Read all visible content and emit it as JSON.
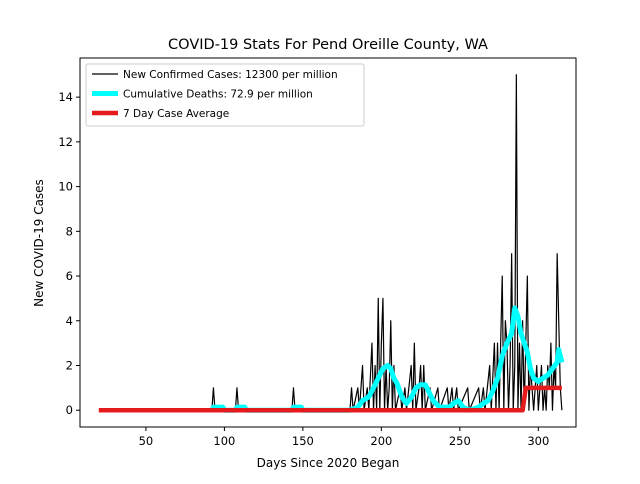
{
  "chart_data": {
    "type": "line",
    "title": "COVID-19 Stats For Pend Oreille County, WA",
    "xlabel": "Days Since 2020 Began",
    "ylabel": "New COVID-19 Cases",
    "xlim": [
      8,
      324
    ],
    "ylim": [
      -0.75,
      15.75
    ],
    "xticks": [
      50,
      100,
      150,
      200,
      250,
      300
    ],
    "yticks": [
      0,
      2,
      4,
      6,
      8,
      10,
      12,
      14
    ],
    "grid": false,
    "legend_position": "top-left",
    "series": [
      {
        "name": "New Confirmed Cases: 12300 per million",
        "color": "#000000",
        "points": [
          [
            20,
            0
          ],
          [
            92,
            0
          ],
          [
            93,
            1
          ],
          [
            94,
            0
          ],
          [
            107,
            0
          ],
          [
            108,
            1
          ],
          [
            109,
            0
          ],
          [
            143,
            0
          ],
          [
            144,
            1
          ],
          [
            145,
            0
          ],
          [
            180,
            0
          ],
          [
            181,
            1
          ],
          [
            182,
            0
          ],
          [
            185,
            1
          ],
          [
            186,
            0
          ],
          [
            188,
            2
          ],
          [
            189,
            0
          ],
          [
            191,
            1
          ],
          [
            192,
            0
          ],
          [
            194,
            3
          ],
          [
            195,
            0
          ],
          [
            196,
            2
          ],
          [
            197,
            0
          ],
          [
            198,
            5
          ],
          [
            199,
            0
          ],
          [
            200,
            3
          ],
          [
            201,
            5
          ],
          [
            202,
            0
          ],
          [
            203,
            2
          ],
          [
            204,
            0
          ],
          [
            205,
            1
          ],
          [
            206,
            4
          ],
          [
            207,
            0
          ],
          [
            208,
            2
          ],
          [
            209,
            0
          ],
          [
            212,
            1
          ],
          [
            213,
            0
          ],
          [
            215,
            1
          ],
          [
            216,
            0
          ],
          [
            219,
            2
          ],
          [
            220,
            0
          ],
          [
            221,
            3
          ],
          [
            222,
            0
          ],
          [
            224,
            1
          ],
          [
            225,
            2
          ],
          [
            226,
            0
          ],
          [
            227,
            2
          ],
          [
            228,
            0
          ],
          [
            231,
            1
          ],
          [
            232,
            0
          ],
          [
            236,
            1
          ],
          [
            237,
            0
          ],
          [
            242,
            1
          ],
          [
            243,
            0
          ],
          [
            245,
            1
          ],
          [
            246,
            0
          ],
          [
            248,
            1
          ],
          [
            249,
            0
          ],
          [
            255,
            1
          ],
          [
            256,
            0
          ],
          [
            262,
            1
          ],
          [
            263,
            0
          ],
          [
            265,
            1
          ],
          [
            266,
            0
          ],
          [
            269,
            2
          ],
          [
            270,
            0
          ],
          [
            272,
            3
          ],
          [
            273,
            0
          ],
          [
            274,
            3
          ],
          [
            275,
            0
          ],
          [
            277,
            6
          ],
          [
            278,
            0
          ],
          [
            279,
            4
          ],
          [
            280,
            3
          ],
          [
            281,
            0
          ],
          [
            282,
            2
          ],
          [
            283,
            7
          ],
          [
            284,
            0
          ],
          [
            285,
            2
          ],
          [
            286,
            15
          ],
          [
            287,
            0
          ],
          [
            288,
            3
          ],
          [
            289,
            0
          ],
          [
            290,
            4
          ],
          [
            291,
            0
          ],
          [
            292,
            3
          ],
          [
            293,
            6
          ],
          [
            294,
            0
          ],
          [
            295,
            2
          ],
          [
            296,
            1
          ],
          [
            297,
            0
          ],
          [
            299,
            2
          ],
          [
            300,
            0
          ],
          [
            302,
            2
          ],
          [
            303,
            0
          ],
          [
            304,
            1
          ],
          [
            305,
            0
          ],
          [
            306,
            2
          ],
          [
            307,
            1
          ],
          [
            308,
            3
          ],
          [
            309,
            0
          ],
          [
            310,
            2
          ],
          [
            311,
            1
          ],
          [
            312,
            7
          ],
          [
            313,
            4
          ],
          [
            314,
            1
          ],
          [
            315,
            0
          ]
        ]
      },
      {
        "name": "Cumulative Deaths: 72.9 per million",
        "color": "#00ffff",
        "points": [
          [
            92,
            0
          ],
          [
            93,
            0.14
          ],
          [
            94,
            0.14
          ],
          [
            99,
            0.14
          ],
          [
            100,
            0
          ],
          [
            107,
            0
          ],
          [
            108,
            0.14
          ],
          [
            113,
            0.14
          ],
          [
            114,
            0
          ],
          [
            143,
            0
          ],
          [
            144,
            0.14
          ],
          [
            149,
            0.14
          ],
          [
            150,
            0
          ],
          [
            180,
            0
          ],
          [
            185,
            0.14
          ],
          [
            188,
            0.43
          ],
          [
            192,
            0.6
          ],
          [
            195,
            1.0
          ],
          [
            198,
            1.43
          ],
          [
            201,
            1.86
          ],
          [
            204,
            2.0
          ],
          [
            206,
            1.86
          ],
          [
            208,
            1.43
          ],
          [
            210,
            1.2
          ],
          [
            213,
            0.6
          ],
          [
            216,
            0.3
          ],
          [
            219,
            0.57
          ],
          [
            222,
            1.0
          ],
          [
            225,
            1.14
          ],
          [
            228,
            1.14
          ],
          [
            230,
            0.86
          ],
          [
            233,
            0.43
          ],
          [
            237,
            0.14
          ],
          [
            240,
            0.14
          ],
          [
            243,
            0.14
          ],
          [
            246,
            0.3
          ],
          [
            249,
            0.43
          ],
          [
            252,
            0.14
          ],
          [
            256,
            0
          ],
          [
            262,
            0.14
          ],
          [
            265,
            0.3
          ],
          [
            268,
            0.43
          ],
          [
            271,
            0.86
          ],
          [
            274,
            1.43
          ],
          [
            277,
            2.43
          ],
          [
            280,
            3.0
          ],
          [
            283,
            3.43
          ],
          [
            285,
            4.57
          ],
          [
            287,
            4.2
          ],
          [
            289,
            3.43
          ],
          [
            291,
            3.0
          ],
          [
            293,
            2.6
          ],
          [
            295,
            1.86
          ],
          [
            297,
            1.43
          ],
          [
            300,
            1.29
          ],
          [
            303,
            1.43
          ],
          [
            306,
            1.57
          ],
          [
            309,
            1.86
          ],
          [
            312,
            2.14
          ],
          [
            313,
            2.71
          ],
          [
            315,
            2.14
          ]
        ]
      },
      {
        "name": "7 Day Case Average",
        "color": "#e41a1c",
        "points": [
          [
            20,
            0
          ],
          [
            290,
            0
          ],
          [
            292,
            1
          ],
          [
            315,
            1
          ]
        ]
      }
    ]
  }
}
